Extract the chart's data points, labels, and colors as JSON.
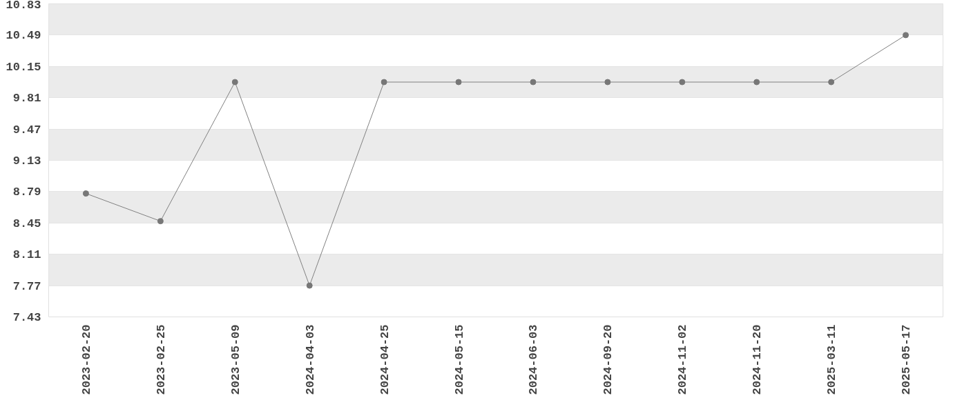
{
  "chart_data": {
    "type": "line",
    "categories": [
      "2023-02-20",
      "2023-02-25",
      "2023-05-09",
      "2024-04-03",
      "2024-04-25",
      "2024-05-15",
      "2024-06-03",
      "2024-09-20",
      "2024-11-02",
      "2024-11-20",
      "2025-03-11",
      "2025-05-17"
    ],
    "series": [
      {
        "color": "#808080",
        "values": [
          8.77,
          8.47,
          9.98,
          7.77,
          9.98,
          9.98,
          9.98,
          9.98,
          9.98,
          9.98,
          9.98,
          10.49
        ]
      }
    ],
    "ylim": [
      7.43,
      10.83
    ],
    "yticks": [
      7.43,
      7.77,
      8.11,
      8.45,
      8.79,
      9.13,
      9.47,
      9.81,
      10.15,
      10.49,
      10.83
    ],
    "grid": "y",
    "marker": "circle",
    "line_style": "solid"
  }
}
